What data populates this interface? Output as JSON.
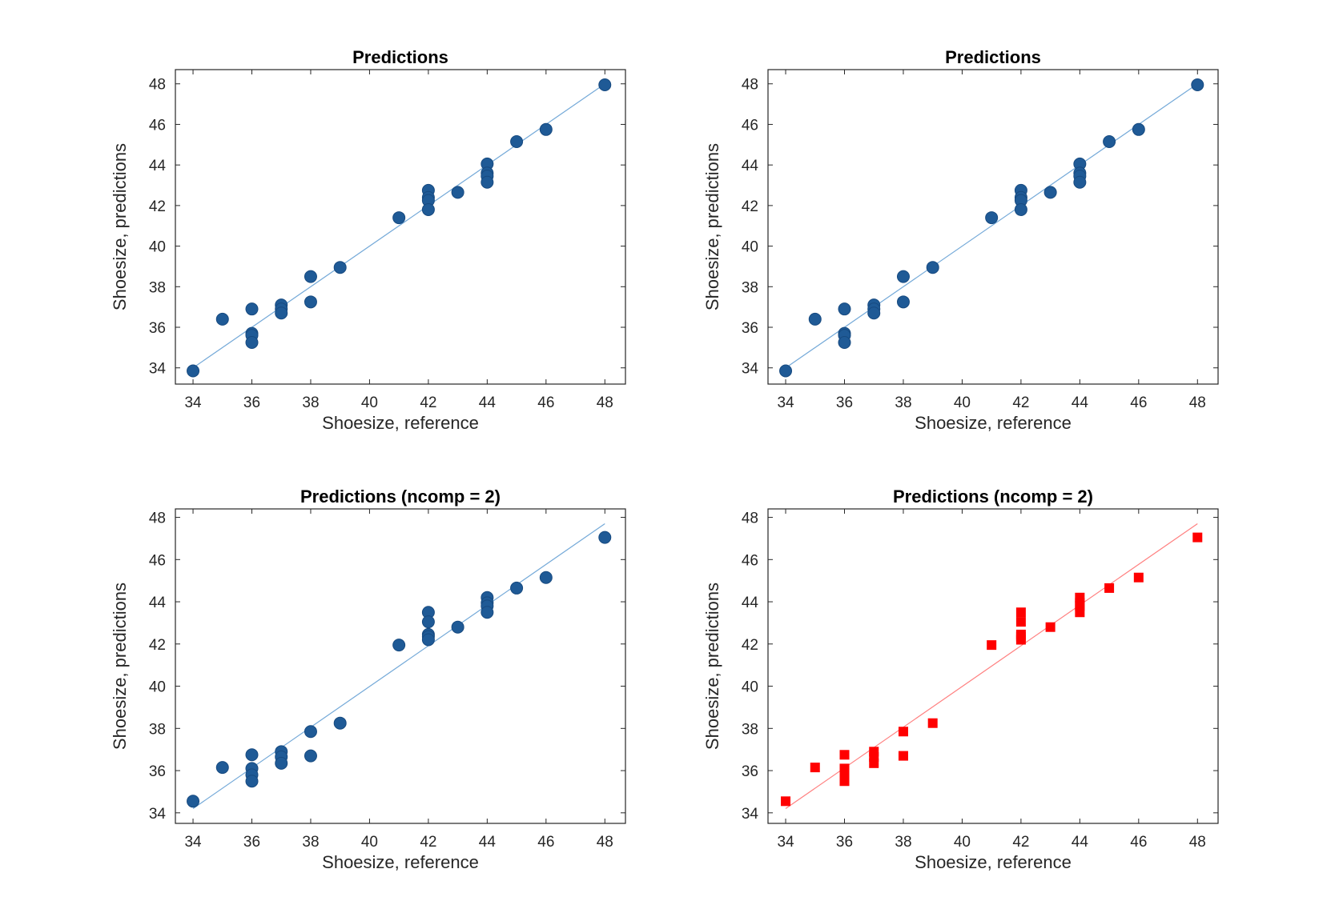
{
  "chart_data": [
    {
      "type": "scatter",
      "title": "Predictions",
      "xlabel": "Shoesize, reference",
      "ylabel": "Shoesize, predictions",
      "xlim": [
        33.4,
        48.7
      ],
      "ylim": [
        33.2,
        48.7
      ],
      "xticks": [
        34,
        36,
        38,
        40,
        42,
        44,
        46,
        48
      ],
      "yticks": [
        34,
        36,
        38,
        40,
        42,
        44,
        46,
        48
      ],
      "marker": "circle",
      "color": "#1f5a96",
      "line_color": "#74a9d8",
      "fit_line": {
        "x": [
          34,
          48
        ],
        "y": [
          34.0,
          48.0
        ]
      },
      "points": {
        "x": [
          34,
          35,
          36,
          36,
          36,
          36,
          37,
          37,
          37,
          38,
          38,
          39,
          41,
          42,
          42,
          42,
          42,
          43,
          44,
          44,
          44,
          44,
          45,
          46,
          48
        ],
        "y": [
          33.85,
          36.4,
          36.9,
          35.7,
          35.6,
          35.25,
          37.1,
          36.9,
          36.7,
          38.5,
          37.25,
          38.95,
          41.4,
          42.75,
          42.4,
          42.25,
          41.8,
          42.65,
          44.05,
          43.6,
          43.45,
          43.15,
          45.15,
          45.75,
          47.95
        ]
      }
    },
    {
      "type": "scatter",
      "title": "Predictions",
      "xlabel": "Shoesize, reference",
      "ylabel": "Shoesize, predictions",
      "xlim": [
        33.4,
        48.7
      ],
      "ylim": [
        33.2,
        48.7
      ],
      "xticks": [
        34,
        36,
        38,
        40,
        42,
        44,
        46,
        48
      ],
      "yticks": [
        34,
        36,
        38,
        40,
        42,
        44,
        46,
        48
      ],
      "marker": "circle",
      "color": "#1f5a96",
      "line_color": "#74a9d8",
      "fit_line": {
        "x": [
          34,
          48
        ],
        "y": [
          34.0,
          48.0
        ]
      },
      "points": {
        "x": [
          34,
          35,
          36,
          36,
          36,
          36,
          37,
          37,
          37,
          38,
          38,
          39,
          41,
          42,
          42,
          42,
          42,
          43,
          44,
          44,
          44,
          44,
          45,
          46,
          48
        ],
        "y": [
          33.85,
          36.4,
          36.9,
          35.7,
          35.6,
          35.25,
          37.1,
          36.9,
          36.7,
          38.5,
          37.25,
          38.95,
          41.4,
          42.75,
          42.4,
          42.25,
          41.8,
          42.65,
          44.05,
          43.6,
          43.45,
          43.15,
          45.15,
          45.75,
          47.95
        ]
      }
    },
    {
      "type": "scatter",
      "title": "Predictions (ncomp = 2)",
      "xlabel": "Shoesize, reference",
      "ylabel": "Shoesize, predictions",
      "xlim": [
        33.4,
        48.7
      ],
      "ylim": [
        33.5,
        48.4
      ],
      "xticks": [
        34,
        36,
        38,
        40,
        42,
        44,
        46,
        48
      ],
      "yticks": [
        34,
        36,
        38,
        40,
        42,
        44,
        46,
        48
      ],
      "marker": "circle",
      "color": "#1f5a96",
      "line_color": "#74a9d8",
      "fit_line": {
        "x": [
          34,
          48
        ],
        "y": [
          34.2,
          47.7
        ]
      },
      "points": {
        "x": [
          34,
          35,
          36,
          36,
          36,
          36,
          37,
          37,
          37,
          38,
          38,
          39,
          41,
          42,
          42,
          42,
          42,
          42,
          43,
          44,
          44,
          44,
          44,
          45,
          46,
          48
        ],
        "y": [
          34.55,
          36.15,
          36.75,
          36.1,
          35.8,
          35.5,
          36.9,
          36.65,
          36.35,
          37.85,
          36.7,
          38.25,
          41.95,
          43.5,
          43.05,
          42.45,
          42.35,
          42.2,
          42.8,
          44.2,
          43.95,
          43.8,
          43.5,
          44.65,
          45.15,
          47.05
        ]
      }
    },
    {
      "type": "scatter",
      "title": "Predictions (ncomp = 2)",
      "xlabel": "Shoesize, reference",
      "ylabel": "Shoesize, predictions",
      "xlim": [
        33.4,
        48.7
      ],
      "ylim": [
        33.5,
        48.4
      ],
      "xticks": [
        34,
        36,
        38,
        40,
        42,
        44,
        46,
        48
      ],
      "yticks": [
        34,
        36,
        38,
        40,
        42,
        44,
        46,
        48
      ],
      "marker": "square",
      "color": "#ff0000",
      "line_color": "#ff8080",
      "fit_line": {
        "x": [
          34,
          48
        ],
        "y": [
          34.2,
          47.7
        ]
      },
      "points": {
        "x": [
          34,
          35,
          36,
          36,
          36,
          36,
          37,
          37,
          37,
          38,
          38,
          39,
          41,
          42,
          42,
          42,
          42,
          42,
          43,
          44,
          44,
          44,
          44,
          45,
          46,
          48
        ],
        "y": [
          34.55,
          36.15,
          36.75,
          36.1,
          35.8,
          35.5,
          36.9,
          36.65,
          36.35,
          37.85,
          36.7,
          38.25,
          41.95,
          43.5,
          43.05,
          42.45,
          42.35,
          42.2,
          42.8,
          44.2,
          43.95,
          43.8,
          43.5,
          44.65,
          45.15,
          47.05
        ]
      }
    }
  ]
}
